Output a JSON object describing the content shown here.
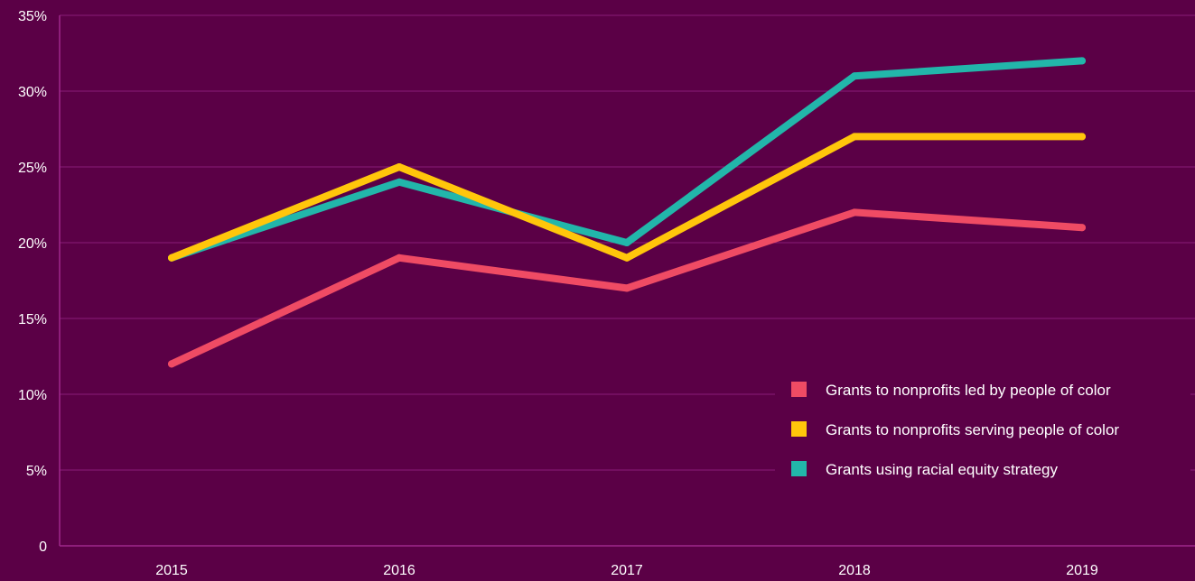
{
  "colors": {
    "background": "#5b0046",
    "grid": "#8a1b78",
    "text": "#ffffff"
  },
  "chart_data": {
    "type": "line",
    "title": "",
    "xlabel": "",
    "ylabel": "",
    "x": [
      "2015",
      "2016",
      "2017",
      "2018",
      "2019"
    ],
    "ylim": [
      0,
      35
    ],
    "y_ticks": [
      0,
      5,
      10,
      15,
      20,
      25,
      30,
      35
    ],
    "y_tick_labels": [
      "0",
      "5%",
      "10%",
      "15%",
      "20%",
      "25%",
      "30%",
      "35%"
    ],
    "grid": true,
    "legend_position": "bottom-right",
    "series": [
      {
        "name": "Grants to nonprofits led by people of color",
        "color": "#ef4b64",
        "values": [
          12,
          19,
          17,
          22,
          21
        ]
      },
      {
        "name": "Grants to nonprofits serving people of color",
        "color": "#ffc60b",
        "values": [
          19,
          25,
          19,
          27,
          27
        ]
      },
      {
        "name": "Grants using racial equity strategy",
        "color": "#22b6aa",
        "values": [
          19,
          24,
          20,
          31,
          32
        ]
      }
    ]
  }
}
